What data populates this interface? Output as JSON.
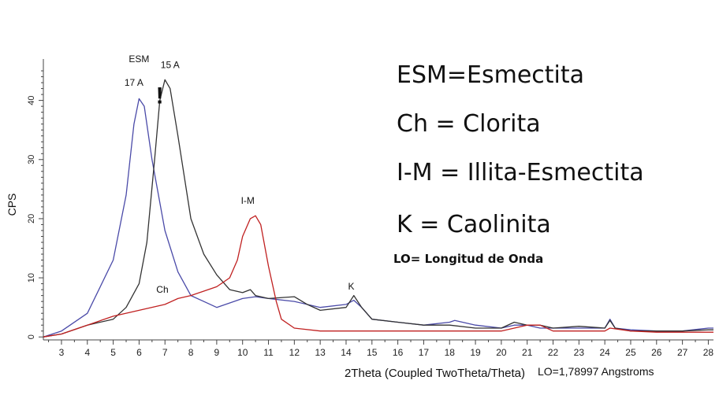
{
  "chart_data": {
    "type": "line",
    "title": "",
    "xlabel": "2Theta (Coupled TwoTheta/Theta)",
    "ylabel": "CPS",
    "xlim": [
      2.3,
      28.2
    ],
    "ylim": [
      -0.5,
      47
    ],
    "xticks": [
      3,
      4,
      5,
      6,
      7,
      8,
      9,
      10,
      11,
      12,
      13,
      14,
      15,
      16,
      17,
      18,
      19,
      20,
      21,
      22,
      23,
      24,
      25,
      26,
      27,
      28
    ],
    "yticks": [
      0,
      10,
      20,
      30,
      40
    ],
    "series": [
      {
        "color": "#4a4aa8",
        "points": [
          [
            2.3,
            0
          ],
          [
            3,
            1
          ],
          [
            4,
            4
          ],
          [
            5,
            13
          ],
          [
            5.5,
            24
          ],
          [
            5.8,
            36
          ],
          [
            6,
            40.3
          ],
          [
            6.2,
            39
          ],
          [
            6.5,
            30
          ],
          [
            7,
            18
          ],
          [
            7.5,
            11
          ],
          [
            8,
            7
          ],
          [
            9,
            5
          ],
          [
            10,
            6.5
          ],
          [
            10.5,
            6.8
          ],
          [
            11,
            6.5
          ],
          [
            12,
            6
          ],
          [
            13,
            5
          ],
          [
            14,
            5.5
          ],
          [
            14.3,
            6.2
          ],
          [
            14.6,
            5
          ],
          [
            15,
            3
          ],
          [
            16,
            2.5
          ],
          [
            17,
            2
          ],
          [
            18,
            2.5
          ],
          [
            18.2,
            2.8
          ],
          [
            19,
            2
          ],
          [
            20,
            1.5
          ],
          [
            20.5,
            2
          ],
          [
            21,
            2
          ],
          [
            21.5,
            1.5
          ],
          [
            22,
            1.5
          ],
          [
            23,
            1.5
          ],
          [
            24,
            1.5
          ],
          [
            24.2,
            3
          ],
          [
            24.4,
            1.5
          ],
          [
            25,
            1.2
          ],
          [
            26,
            1
          ],
          [
            27,
            1
          ],
          [
            28,
            1.5
          ],
          [
            28.2,
            1.5
          ]
        ]
      },
      {
        "color": "#333333",
        "points": [
          [
            2.3,
            0
          ],
          [
            3,
            0.5
          ],
          [
            4,
            2
          ],
          [
            5,
            3
          ],
          [
            5.5,
            5
          ],
          [
            6,
            9
          ],
          [
            6.3,
            16
          ],
          [
            6.6,
            30
          ],
          [
            6.8,
            40
          ],
          [
            7,
            43.5
          ],
          [
            7.2,
            42
          ],
          [
            7.5,
            34
          ],
          [
            8,
            20
          ],
          [
            8.5,
            14
          ],
          [
            9,
            10.5
          ],
          [
            9.5,
            8
          ],
          [
            10,
            7.5
          ],
          [
            10.3,
            8
          ],
          [
            10.5,
            7
          ],
          [
            11,
            6.5
          ],
          [
            12,
            6.8
          ],
          [
            12.5,
            5.5
          ],
          [
            13,
            4.5
          ],
          [
            14,
            5
          ],
          [
            14.3,
            7
          ],
          [
            14.6,
            5
          ],
          [
            15,
            3
          ],
          [
            16,
            2.5
          ],
          [
            17,
            2
          ],
          [
            18,
            2
          ],
          [
            19,
            1.5
          ],
          [
            20,
            1.5
          ],
          [
            20.5,
            2.5
          ],
          [
            21,
            2
          ],
          [
            21.5,
            2
          ],
          [
            22,
            1.5
          ],
          [
            23,
            1.8
          ],
          [
            24,
            1.5
          ],
          [
            24.2,
            2.8
          ],
          [
            24.4,
            1.5
          ],
          [
            25,
            1
          ],
          [
            26,
            1
          ],
          [
            27,
            1
          ],
          [
            28,
            1.2
          ],
          [
            28.2,
            1.2
          ]
        ]
      },
      {
        "color": "#c02020",
        "points": [
          [
            2.3,
            0
          ],
          [
            3,
            0.5
          ],
          [
            4,
            2
          ],
          [
            5,
            3.5
          ],
          [
            6,
            4.5
          ],
          [
            7,
            5.5
          ],
          [
            7.5,
            6.5
          ],
          [
            8,
            7
          ],
          [
            9,
            8.5
          ],
          [
            9.5,
            10
          ],
          [
            9.8,
            13
          ],
          [
            10,
            17
          ],
          [
            10.3,
            20
          ],
          [
            10.5,
            20.5
          ],
          [
            10.7,
            19
          ],
          [
            11,
            12
          ],
          [
            11.3,
            6
          ],
          [
            11.5,
            3
          ],
          [
            12,
            1.5
          ],
          [
            13,
            1
          ],
          [
            14,
            1
          ],
          [
            15,
            1
          ],
          [
            16,
            1
          ],
          [
            17,
            1
          ],
          [
            18,
            1
          ],
          [
            19,
            1
          ],
          [
            20,
            1
          ],
          [
            20.5,
            1.5
          ],
          [
            21,
            2
          ],
          [
            21.5,
            2
          ],
          [
            22,
            1
          ],
          [
            23,
            1
          ],
          [
            24,
            1
          ],
          [
            24.2,
            1.5
          ],
          [
            25,
            1
          ],
          [
            26,
            0.8
          ],
          [
            27,
            0.8
          ],
          [
            28,
            0.8
          ],
          [
            28.2,
            0.8
          ]
        ]
      }
    ],
    "annotations": [
      {
        "text": "ESM",
        "x": 6.0,
        "y": 46.5
      },
      {
        "text": "17 A",
        "x": 5.8,
        "y": 42.5
      },
      {
        "text": "15 A",
        "x": 7.2,
        "y": 45.5
      },
      {
        "text": "!",
        "x": 6.8,
        "y": 39.5
      },
      {
        "text": "I-M",
        "x": 10.2,
        "y": 22.5
      },
      {
        "text": "Ch",
        "x": 6.9,
        "y": 7.5
      },
      {
        "text": "K",
        "x": 14.2,
        "y": 8.0
      }
    ]
  },
  "legend": {
    "esm": "ESM=Esmectita",
    "ch": "Ch = Clorita",
    "im": "I-M = Illita-Esmectita",
    "k": "K = Caolinita",
    "lo": "LO= Longitud de Onda"
  },
  "note": "LO=1,78997 Angstroms"
}
